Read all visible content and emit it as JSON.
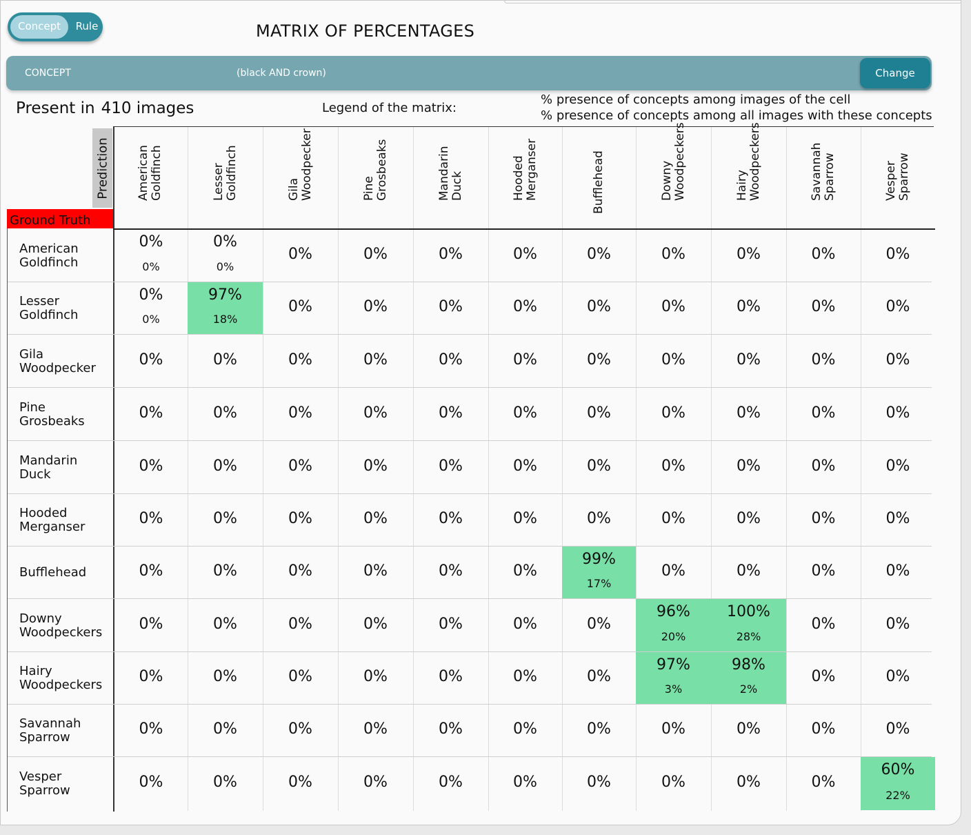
{
  "toggle": {
    "concept_label": "Concept",
    "rule_label": "Rule"
  },
  "page_title": "MATRIX OF PERCENTAGES",
  "concept_bar": {
    "label": "CONCEPT",
    "value": "(black AND crown)",
    "change_label": "Change"
  },
  "present": {
    "prefix": "Present in",
    "count": "410 images"
  },
  "legend": {
    "label": "Legend of the matrix:",
    "line1": "% presence of concepts among images of the cell",
    "line2": "% presence of concepts among all images with these concepts"
  },
  "axis": {
    "prediction": "Prediction",
    "ground_truth": "Ground Truth"
  },
  "columns": [
    [
      "American",
      "Goldfinch"
    ],
    [
      "Lesser",
      "Goldfinch"
    ],
    [
      "Gila",
      "Woodpecker"
    ],
    [
      "Pine",
      "Grosbeaks"
    ],
    [
      "Mandarin",
      "Duck"
    ],
    [
      "Hooded",
      "Merganser"
    ],
    [
      "Bufflehead"
    ],
    [
      "Downy",
      "Woodpeckers"
    ],
    [
      "Hairy",
      "Woodpeckers"
    ],
    [
      "Savannah",
      "Sparrow"
    ],
    [
      "Vesper",
      "Sparrow"
    ]
  ],
  "rows": [
    {
      "label": [
        "American",
        "Goldfinch"
      ],
      "cells": [
        [
          "0%",
          "0%"
        ],
        [
          "0%",
          "0%"
        ],
        [
          "0%"
        ],
        [
          "0%"
        ],
        [
          "0%"
        ],
        [
          "0%"
        ],
        [
          "0%"
        ],
        [
          "0%"
        ],
        [
          "0%"
        ],
        [
          "0%"
        ],
        [
          "0%"
        ]
      ]
    },
    {
      "label": [
        "Lesser",
        "Goldfinch"
      ],
      "cells": [
        [
          "0%",
          "0%"
        ],
        [
          "97%",
          "18%"
        ],
        [
          "0%"
        ],
        [
          "0%"
        ],
        [
          "0%"
        ],
        [
          "0%"
        ],
        [
          "0%"
        ],
        [
          "0%"
        ],
        [
          "0%"
        ],
        [
          "0%"
        ],
        [
          "0%"
        ]
      ]
    },
    {
      "label": [
        "Gila",
        "Woodpecker"
      ],
      "cells": [
        [
          "0%"
        ],
        [
          "0%"
        ],
        [
          "0%"
        ],
        [
          "0%"
        ],
        [
          "0%"
        ],
        [
          "0%"
        ],
        [
          "0%"
        ],
        [
          "0%"
        ],
        [
          "0%"
        ],
        [
          "0%"
        ],
        [
          "0%"
        ]
      ]
    },
    {
      "label": [
        "Pine",
        "Grosbeaks"
      ],
      "cells": [
        [
          "0%"
        ],
        [
          "0%"
        ],
        [
          "0%"
        ],
        [
          "0%"
        ],
        [
          "0%"
        ],
        [
          "0%"
        ],
        [
          "0%"
        ],
        [
          "0%"
        ],
        [
          "0%"
        ],
        [
          "0%"
        ],
        [
          "0%"
        ]
      ]
    },
    {
      "label": [
        "Mandarin",
        "Duck"
      ],
      "cells": [
        [
          "0%"
        ],
        [
          "0%"
        ],
        [
          "0%"
        ],
        [
          "0%"
        ],
        [
          "0%"
        ],
        [
          "0%"
        ],
        [
          "0%"
        ],
        [
          "0%"
        ],
        [
          "0%"
        ],
        [
          "0%"
        ],
        [
          "0%"
        ]
      ]
    },
    {
      "label": [
        "Hooded",
        "Merganser"
      ],
      "cells": [
        [
          "0%"
        ],
        [
          "0%"
        ],
        [
          "0%"
        ],
        [
          "0%"
        ],
        [
          "0%"
        ],
        [
          "0%"
        ],
        [
          "0%"
        ],
        [
          "0%"
        ],
        [
          "0%"
        ],
        [
          "0%"
        ],
        [
          "0%"
        ]
      ]
    },
    {
      "label": [
        "Bufflehead"
      ],
      "cells": [
        [
          "0%"
        ],
        [
          "0%"
        ],
        [
          "0%"
        ],
        [
          "0%"
        ],
        [
          "0%"
        ],
        [
          "0%"
        ],
        [
          "99%",
          "17%"
        ],
        [
          "0%"
        ],
        [
          "0%"
        ],
        [
          "0%"
        ],
        [
          "0%"
        ]
      ]
    },
    {
      "label": [
        "Downy",
        "Woodpeckers"
      ],
      "cells": [
        [
          "0%"
        ],
        [
          "0%"
        ],
        [
          "0%"
        ],
        [
          "0%"
        ],
        [
          "0%"
        ],
        [
          "0%"
        ],
        [
          "0%"
        ],
        [
          "96%",
          "20%"
        ],
        [
          "100%",
          "28%"
        ],
        [
          "0%"
        ],
        [
          "0%"
        ]
      ]
    },
    {
      "label": [
        "Hairy",
        "Woodpeckers"
      ],
      "cells": [
        [
          "0%"
        ],
        [
          "0%"
        ],
        [
          "0%"
        ],
        [
          "0%"
        ],
        [
          "0%"
        ],
        [
          "0%"
        ],
        [
          "0%"
        ],
        [
          "97%",
          "3%"
        ],
        [
          "98%",
          "2%"
        ],
        [
          "0%"
        ],
        [
          "0%"
        ]
      ]
    },
    {
      "label": [
        "Savannah",
        "Sparrow"
      ],
      "cells": [
        [
          "0%"
        ],
        [
          "0%"
        ],
        [
          "0%"
        ],
        [
          "0%"
        ],
        [
          "0%"
        ],
        [
          "0%"
        ],
        [
          "0%"
        ],
        [
          "0%"
        ],
        [
          "0%"
        ],
        [
          "0%"
        ],
        [
          "0%"
        ]
      ]
    },
    {
      "label": [
        "Vesper",
        "Sparrow"
      ],
      "cells": [
        [
          "0%"
        ],
        [
          "0%"
        ],
        [
          "0%"
        ],
        [
          "0%"
        ],
        [
          "0%"
        ],
        [
          "0%"
        ],
        [
          "0%"
        ],
        [
          "0%"
        ],
        [
          "0%"
        ],
        [
          "0%"
        ],
        [
          "60%",
          "22%"
        ]
      ]
    }
  ],
  "colors": {
    "highlight": "#78e0a6",
    "bar": "#76a7b1",
    "button": "#1f7f93",
    "ground_truth": "#ff0000"
  }
}
